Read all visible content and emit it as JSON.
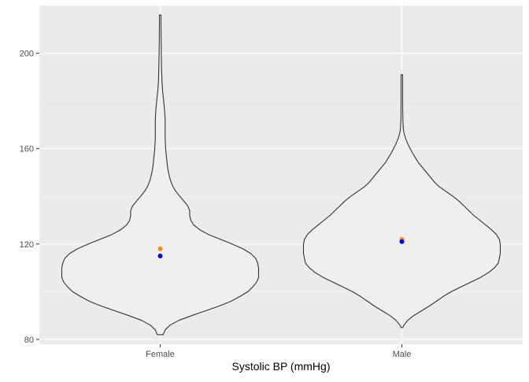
{
  "chart_data": {
    "type": "violin",
    "categories": [
      "Female",
      "Male"
    ],
    "xlabel": "Systolic BP (mmHg)",
    "ylabel": "",
    "ylim": [
      78,
      220
    ],
    "yticks": [
      80,
      120,
      160,
      200
    ],
    "ytick_labels": [
      "80",
      "120",
      "160",
      "200"
    ],
    "grid": true,
    "legend": "none",
    "violins": [
      {
        "category": "Female",
        "profile": [
          [
            82,
            0.03
          ],
          [
            84,
            0.05
          ],
          [
            86,
            0.1
          ],
          [
            88,
            0.19
          ],
          [
            90,
            0.32
          ],
          [
            92,
            0.46
          ],
          [
            94,
            0.6
          ],
          [
            96,
            0.72
          ],
          [
            98,
            0.81
          ],
          [
            100,
            0.89
          ],
          [
            102,
            0.94
          ],
          [
            104,
            0.98
          ],
          [
            106,
            1.0
          ],
          [
            108,
            1.0
          ],
          [
            110,
            1.0
          ],
          [
            112,
            0.99
          ],
          [
            114,
            0.97
          ],
          [
            116,
            0.92
          ],
          [
            118,
            0.84
          ],
          [
            120,
            0.73
          ],
          [
            122,
            0.61
          ],
          [
            124,
            0.49
          ],
          [
            126,
            0.4
          ],
          [
            128,
            0.34
          ],
          [
            130,
            0.31
          ],
          [
            132,
            0.3
          ],
          [
            134,
            0.3
          ],
          [
            136,
            0.28
          ],
          [
            138,
            0.24
          ],
          [
            140,
            0.2
          ],
          [
            142,
            0.16
          ],
          [
            144,
            0.13
          ],
          [
            146,
            0.11
          ],
          [
            148,
            0.095
          ],
          [
            150,
            0.085
          ],
          [
            152,
            0.075
          ],
          [
            156,
            0.065
          ],
          [
            160,
            0.055
          ],
          [
            164,
            0.05
          ],
          [
            168,
            0.05
          ],
          [
            172,
            0.05
          ],
          [
            176,
            0.045
          ],
          [
            180,
            0.035
          ],
          [
            184,
            0.025
          ],
          [
            188,
            0.018
          ],
          [
            192,
            0.015
          ],
          [
            196,
            0.013
          ],
          [
            200,
            0.011
          ],
          [
            204,
            0.01
          ],
          [
            208,
            0.009
          ],
          [
            212,
            0.008
          ],
          [
            216,
            0.008
          ]
        ],
        "mean": 118,
        "median": 115,
        "mean_color": "#FF8C00",
        "median_color": "#0000FF"
      },
      {
        "category": "Male",
        "profile": [
          [
            85,
            0.01
          ],
          [
            86,
            0.02
          ],
          [
            88,
            0.06
          ],
          [
            90,
            0.12
          ],
          [
            92,
            0.2
          ],
          [
            94,
            0.28
          ],
          [
            96,
            0.35
          ],
          [
            98,
            0.42
          ],
          [
            100,
            0.5
          ],
          [
            102,
            0.6
          ],
          [
            104,
            0.7
          ],
          [
            106,
            0.8
          ],
          [
            108,
            0.88
          ],
          [
            110,
            0.94
          ],
          [
            112,
            0.98
          ],
          [
            114,
            0.99
          ],
          [
            116,
            1.0
          ],
          [
            118,
            1.0
          ],
          [
            120,
            1.0
          ],
          [
            122,
            0.99
          ],
          [
            124,
            0.96
          ],
          [
            126,
            0.91
          ],
          [
            128,
            0.85
          ],
          [
            130,
            0.79
          ],
          [
            132,
            0.73
          ],
          [
            134,
            0.68
          ],
          [
            136,
            0.63
          ],
          [
            138,
            0.58
          ],
          [
            140,
            0.52
          ],
          [
            142,
            0.45
          ],
          [
            144,
            0.38
          ],
          [
            146,
            0.33
          ],
          [
            148,
            0.29
          ],
          [
            150,
            0.25
          ],
          [
            152,
            0.21
          ],
          [
            154,
            0.17
          ],
          [
            156,
            0.14
          ],
          [
            158,
            0.11
          ],
          [
            160,
            0.085
          ],
          [
            162,
            0.06
          ],
          [
            164,
            0.04
          ],
          [
            166,
            0.025
          ],
          [
            168,
            0.015
          ],
          [
            172,
            0.01
          ],
          [
            176,
            0.009
          ],
          [
            180,
            0.008
          ],
          [
            184,
            0.008
          ],
          [
            188,
            0.008
          ],
          [
            191,
            0.008
          ]
        ],
        "mean": 122,
        "median": 121,
        "mean_color": "#FF8C00",
        "median_color": "#0000FF"
      }
    ],
    "colors": {
      "panel_background": "#EBEBEB",
      "grid_major": "#FFFFFF",
      "grid_minor": "#F5F5F5",
      "violin_fill": "#EFEFEF",
      "violin_stroke": "#333333"
    }
  }
}
